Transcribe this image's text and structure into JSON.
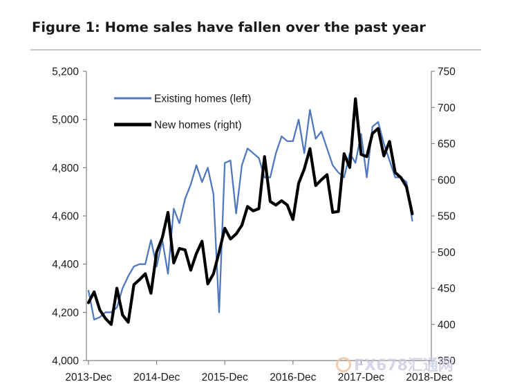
{
  "figure": {
    "title": "Figure 1: Home sales have fallen over the past year"
  },
  "watermark": {
    "text": "FX678",
    "suffix": "汇通网"
  },
  "chart_data": {
    "type": "line",
    "grid": false,
    "legend_position": "upper-left",
    "x_tick_labels": [
      "2013-Dec",
      "2014-Dec",
      "2015-Dec",
      "2016-Dec",
      "2017-Dec",
      "2018-Dec"
    ],
    "x_start": "2013-12",
    "y_left": {
      "range": [
        4000,
        5200
      ],
      "ticks": [
        4000,
        4200,
        4400,
        4600,
        4800,
        5000,
        5200
      ],
      "tick_labels": [
        "4,000",
        "4,200",
        "4,400",
        "4,600",
        "4,800",
        "5,000",
        "5,200"
      ]
    },
    "y_right": {
      "range": [
        350,
        750
      ],
      "ticks": [
        350,
        400,
        450,
        500,
        550,
        600,
        650,
        700,
        750
      ],
      "tick_labels": [
        "350",
        "400",
        "450",
        "500",
        "550",
        "600",
        "650",
        "700",
        "750"
      ]
    },
    "series": [
      {
        "name": "Existing homes (left)",
        "axis": "left",
        "color": "#4f78be",
        "values": [
          4290,
          4170,
          4180,
          4200,
          4200,
          4220,
          4300,
          4350,
          4390,
          4400,
          4400,
          4500,
          4390,
          4500,
          4360,
          4630,
          4570,
          4670,
          4730,
          4810,
          4740,
          4800,
          4690,
          4200,
          4820,
          4830,
          4610,
          4810,
          4880,
          4860,
          4840,
          4760,
          4760,
          4860,
          4930,
          4910,
          4910,
          5000,
          4860,
          5040,
          4920,
          4950,
          4880,
          4810,
          4780,
          4760,
          4860,
          4820,
          4940,
          4760,
          4970,
          4990,
          4900,
          4830,
          4760,
          4760,
          4740,
          4580
        ]
      },
      {
        "name": "New homes (right)",
        "axis": "right",
        "color": "#000000",
        "values": [
          430,
          445,
          420,
          408,
          400,
          450,
          413,
          403,
          455,
          462,
          470,
          443,
          500,
          520,
          555,
          485,
          505,
          503,
          475,
          498,
          515,
          456,
          470,
          500,
          533,
          518,
          525,
          537,
          563,
          557,
          560,
          632,
          570,
          565,
          571,
          565,
          545,
          595,
          615,
          643,
          592,
          600,
          607,
          555,
          556,
          636,
          617,
          712,
          635,
          632,
          664,
          671,
          633,
          653,
          610,
          603,
          590,
          553
        ]
      }
    ]
  }
}
